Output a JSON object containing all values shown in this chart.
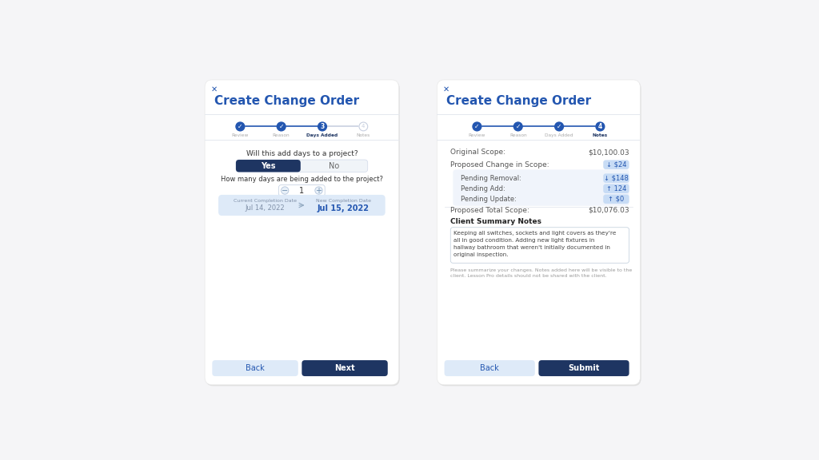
{
  "bg_color": "#f5f5f7",
  "card_bg": "#ffffff",
  "title": "Create Change Order",
  "title_color": "#2356b0",
  "close_icon": "✕",
  "steps": [
    "Review",
    "Reason",
    "Days Added",
    "Notes"
  ],
  "step_active_color": "#2356b0",
  "step_inactive_color": "#c8d0e0",
  "panel1": {
    "active_step": 3,
    "question": "Will this add days to a project?",
    "yes_label": "Yes",
    "no_label": "No",
    "yes_bg": "#1e3562",
    "no_bg": "#f0f4f8",
    "days_question": "How many days are being added to the project?",
    "days_value": "1",
    "current_completion_label": "Current Completion Date",
    "current_completion_date": "Jul 14, 2022",
    "new_completion_label": "New Completion Date",
    "new_completion_date": "Jul 15, 2022",
    "date_bg": "#deeaf8",
    "back_label": "Back",
    "next_label": "Next",
    "back_bg": "#deeaf8",
    "next_bg": "#1e3562"
  },
  "panel2": {
    "active_step": 4,
    "original_scope_label": "Original Scope:",
    "original_scope_value": "$10,100.03",
    "proposed_change_label": "Proposed Change in Scope:",
    "proposed_change_value": "↓ $24",
    "proposed_change_badge_bg": "#c8dcf5",
    "proposed_change_badge_color": "#2356b0",
    "pending_removal_label": "Pending Removal:",
    "pending_removal_value": "↓ $148",
    "pending_add_label": "Pending Add:",
    "pending_add_value": "↑ 124",
    "pending_update_label": "Pending Update:",
    "pending_update_value": "↑ $0",
    "pending_badge_bg": "#c8dcf5",
    "pending_badge_color": "#2356b0",
    "pending_section_bg": "#f0f4fb",
    "proposed_total_label": "Proposed Total Scope:",
    "proposed_total_value": "$10,076.03",
    "notes_title": "Client Summary Notes",
    "notes_text": "Keeping all switches, sockets and light covers as they're\nall in good condition. Adding new light fixtures in\nhallway bathroom that weren't initially documented in\noriginal inspection.",
    "notes_hint": "Please summarize your changes. Notes added here will be visible to the\nclient. Lesson Pro details should not be shared with the client.",
    "back_label": "Back",
    "submit_label": "Submit",
    "back_bg": "#deeaf8",
    "submit_bg": "#1e3562"
  }
}
